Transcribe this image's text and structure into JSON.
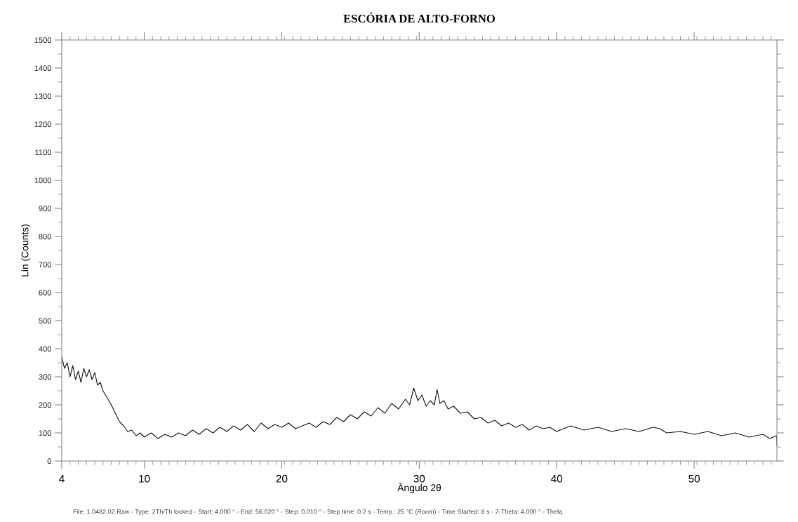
{
  "chart_data": {
    "type": "line",
    "title": "ESCÓRIA DE ALTO-FORNO",
    "xlabel": "Ângulo 2θ",
    "ylabel": "Lin (Counts)",
    "annotations": [
      "File: 1.0482.02.Raw - Type: 2Th/Th locked - Start: 4.000 ° - End: 56.020 ° - Step: 0.010 ° - Step time: 0.2 s - Temp.: 25 °C (Room) - Time Started: 8 s - 2-Theta: 4.000 ° - Theta"
    ],
    "xlim": [
      4,
      56.02
    ],
    "xticks": [
      4,
      10,
      20,
      30,
      40,
      50
    ],
    "ylim": [
      0,
      1500
    ],
    "yticks": [
      0,
      100,
      200,
      300,
      400,
      500,
      600,
      700,
      800,
      900,
      1000,
      1100,
      1200,
      1300,
      1400,
      1500
    ],
    "grid": false,
    "legend": false,
    "marker": "none",
    "line_style": "solid",
    "series": [
      {
        "color": "#111111",
        "x": [
          4,
          4.2,
          4.4,
          4.6,
          4.8,
          5,
          5.2,
          5.4,
          5.6,
          5.8,
          6,
          6.2,
          6.4,
          6.6,
          6.8,
          7,
          7.3,
          7.6,
          7.9,
          8.2,
          8.5,
          8.8,
          9.1,
          9.4,
          9.7,
          10,
          10.5,
          11,
          11.5,
          12,
          12.5,
          13,
          13.5,
          14,
          14.5,
          15,
          15.5,
          16,
          16.5,
          17,
          17.5,
          18,
          18.5,
          19,
          19.5,
          20,
          20.5,
          21,
          21.5,
          22,
          22.5,
          23,
          23.5,
          24,
          24.5,
          25,
          25.5,
          26,
          26.5,
          27,
          27.5,
          28,
          28.5,
          29,
          29.3,
          29.6,
          29.9,
          30.2,
          30.5,
          30.8,
          31.1,
          31.3,
          31.5,
          31.8,
          32.1,
          32.5,
          33,
          33.5,
          34,
          34.5,
          35,
          35.5,
          36,
          36.5,
          37,
          37.5,
          38,
          38.5,
          39,
          39.5,
          40,
          41,
          42,
          43,
          44,
          45,
          46,
          47,
          47.5,
          48,
          49,
          50,
          51,
          52,
          53,
          54,
          55,
          55.5,
          56,
          56.02
        ],
        "values": [
          370,
          330,
          350,
          300,
          340,
          290,
          320,
          280,
          330,
          300,
          325,
          290,
          315,
          270,
          280,
          250,
          225,
          200,
          170,
          140,
          125,
          105,
          110,
          90,
          100,
          85,
          100,
          80,
          95,
          85,
          100,
          90,
          110,
          95,
          115,
          100,
          120,
          105,
          125,
          110,
          130,
          105,
          135,
          115,
          130,
          120,
          135,
          115,
          125,
          135,
          120,
          140,
          130,
          155,
          140,
          165,
          150,
          175,
          160,
          190,
          170,
          205,
          185,
          220,
          200,
          260,
          215,
          235,
          195,
          215,
          200,
          255,
          205,
          215,
          185,
          195,
          170,
          175,
          150,
          155,
          135,
          145,
          125,
          135,
          120,
          130,
          110,
          125,
          115,
          120,
          105,
          125,
          110,
          120,
          105,
          115,
          105,
          120,
          115,
          100,
          105,
          95,
          105,
          90,
          100,
          85,
          95,
          80,
          90,
          55
        ]
      }
    ]
  }
}
